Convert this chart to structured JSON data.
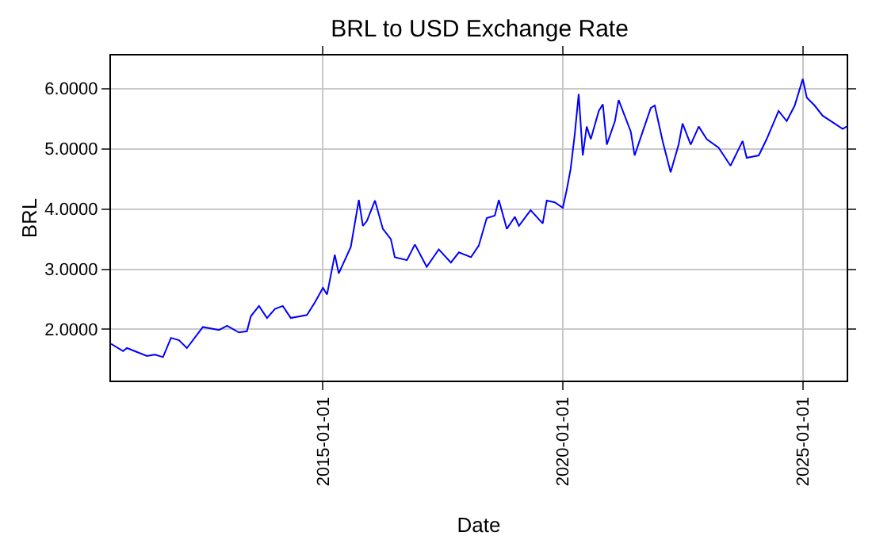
{
  "chart_data": {
    "type": "line",
    "title": "BRL to USD Exchange Rate",
    "xlabel": "Date",
    "ylabel": "BRL",
    "x": [
      "2010-08",
      "2010-11",
      "2010-12",
      "2011-05",
      "2011-07",
      "2011-09",
      "2011-11",
      "2012-01",
      "2012-03",
      "2012-07",
      "2012-11",
      "2013-01",
      "2013-04",
      "2013-06",
      "2013-07",
      "2013-09",
      "2013-11",
      "2014-01",
      "2014-03",
      "2014-05",
      "2014-09",
      "2014-11",
      "2015-01",
      "2015-02",
      "2015-04",
      "2015-05",
      "2015-08",
      "2015-10",
      "2015-11",
      "2015-12",
      "2016-02",
      "2016-04",
      "2016-06",
      "2016-07",
      "2016-10",
      "2016-12",
      "2017-03",
      "2017-06",
      "2017-09",
      "2017-11",
      "2018-02",
      "2018-04",
      "2018-06",
      "2018-08",
      "2018-09",
      "2018-11",
      "2019-01",
      "2019-02",
      "2019-05",
      "2019-08",
      "2019-09",
      "2019-11",
      "2020-01",
      "2020-02",
      "2020-03",
      "2020-04",
      "2020-05",
      "2020-06",
      "2020-07",
      "2020-08",
      "2020-10",
      "2020-11",
      "2020-12",
      "2021-02",
      "2021-03",
      "2021-06",
      "2021-07",
      "2021-09",
      "2021-11",
      "2021-12",
      "2022-02",
      "2022-04",
      "2022-06",
      "2022-07",
      "2022-09",
      "2022-11",
      "2023-01",
      "2023-04",
      "2023-07",
      "2023-10",
      "2023-11",
      "2024-02",
      "2024-04",
      "2024-07",
      "2024-09",
      "2024-11",
      "2025-01",
      "2025-02",
      "2025-04",
      "2025-06",
      "2025-09",
      "2025-11",
      "2025-12"
    ],
    "series": [
      {
        "color": "#0000ff",
        "values": [
          1.76,
          1.64,
          1.69,
          1.56,
          1.58,
          1.54,
          1.86,
          1.82,
          1.69,
          2.04,
          1.99,
          2.06,
          1.95,
          1.97,
          2.22,
          2.39,
          2.19,
          2.34,
          2.39,
          2.19,
          2.24,
          2.45,
          2.69,
          2.58,
          3.24,
          2.93,
          3.37,
          4.15,
          3.72,
          3.8,
          4.14,
          3.67,
          3.5,
          3.2,
          3.15,
          3.41,
          3.04,
          3.33,
          3.11,
          3.28,
          3.2,
          3.39,
          3.85,
          3.89,
          4.15,
          3.67,
          3.87,
          3.72,
          3.98,
          3.76,
          4.14,
          4.11,
          4.02,
          4.33,
          4.67,
          5.24,
          5.91,
          4.89,
          5.37,
          5.16,
          5.63,
          5.74,
          5.07,
          5.46,
          5.81,
          5.29,
          4.89,
          5.29,
          5.68,
          5.72,
          5.11,
          4.61,
          5.07,
          5.42,
          5.07,
          5.37,
          5.16,
          5.02,
          4.72,
          5.13,
          4.85,
          4.89,
          5.16,
          5.63,
          5.46,
          5.72,
          6.16,
          5.85,
          5.72,
          5.55,
          5.42,
          5.33,
          5.37
        ]
      }
    ],
    "xlim": [
      "2010-08",
      "2025-12"
    ],
    "xticks": [
      {
        "value": "2015-01-01",
        "label": "2015-01-01"
      },
      {
        "value": "2020-01-01",
        "label": "2020-01-01"
      },
      {
        "value": "2025-01-01",
        "label": "2025-01-01"
      }
    ],
    "ylim": [
      1.15,
      6.55
    ],
    "yticks": [
      {
        "value": 2,
        "label": "2.0000"
      },
      {
        "value": 3,
        "label": "3.0000"
      },
      {
        "value": 4,
        "label": "4.0000"
      },
      {
        "value": 5,
        "label": "5.0000"
      },
      {
        "value": 6,
        "label": "6.0000"
      }
    ],
    "grid": true,
    "marker": "none",
    "line_style": "solid"
  }
}
